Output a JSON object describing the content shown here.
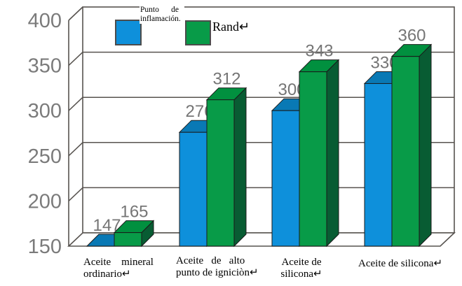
{
  "chart_data": {
    "type": "bar",
    "categories": [
      "Aceite mineral ordinario",
      "Aceite de alto punto de igniciòn",
      "Aceite de silicona",
      "Aceite de silicona"
    ],
    "series": [
      {
        "name": "Punto de inflamación",
        "color_front": "#0E90DB",
        "color_top": "#0979B5",
        "color_side": "#0868A0",
        "values": [
          147,
          276,
          300,
          330
        ]
      },
      {
        "name": "Rand",
        "color_front": "#089B48",
        "color_top": "#01903F",
        "color_side": "#085C33",
        "values": [
          165,
          312,
          343,
          360
        ]
      }
    ],
    "ylim": [
      150,
      400
    ],
    "yticks": [
      150,
      200,
      250,
      300,
      350,
      400
    ],
    "grid": true,
    "legend_position": "top",
    "value_labels": true,
    "projection": "3d"
  },
  "legend": {
    "flash_point": {
      "line1": "Punto      de",
      "line2": "inflamación."
    },
    "rand": {
      "label": "Rand↵"
    }
  },
  "category_labels": [
    {
      "line1": "Aceite    mineral",
      "line2": "ordinario↵"
    },
    {
      "line1": "Aceite   de   alto",
      "line2": "punto de igniciòn↵"
    },
    {
      "line1": "Aceite de",
      "line2": "silicona↵"
    },
    {
      "line1": "Aceite de silicona↵",
      "line2": ""
    }
  ],
  "colors": {
    "grid": "#57534F",
    "axis_text": "#7B7B7B",
    "value_text": "#757575",
    "bar_outline": "#1A1A1A",
    "category_text": "#000000",
    "background": "#FFFFFF"
  }
}
